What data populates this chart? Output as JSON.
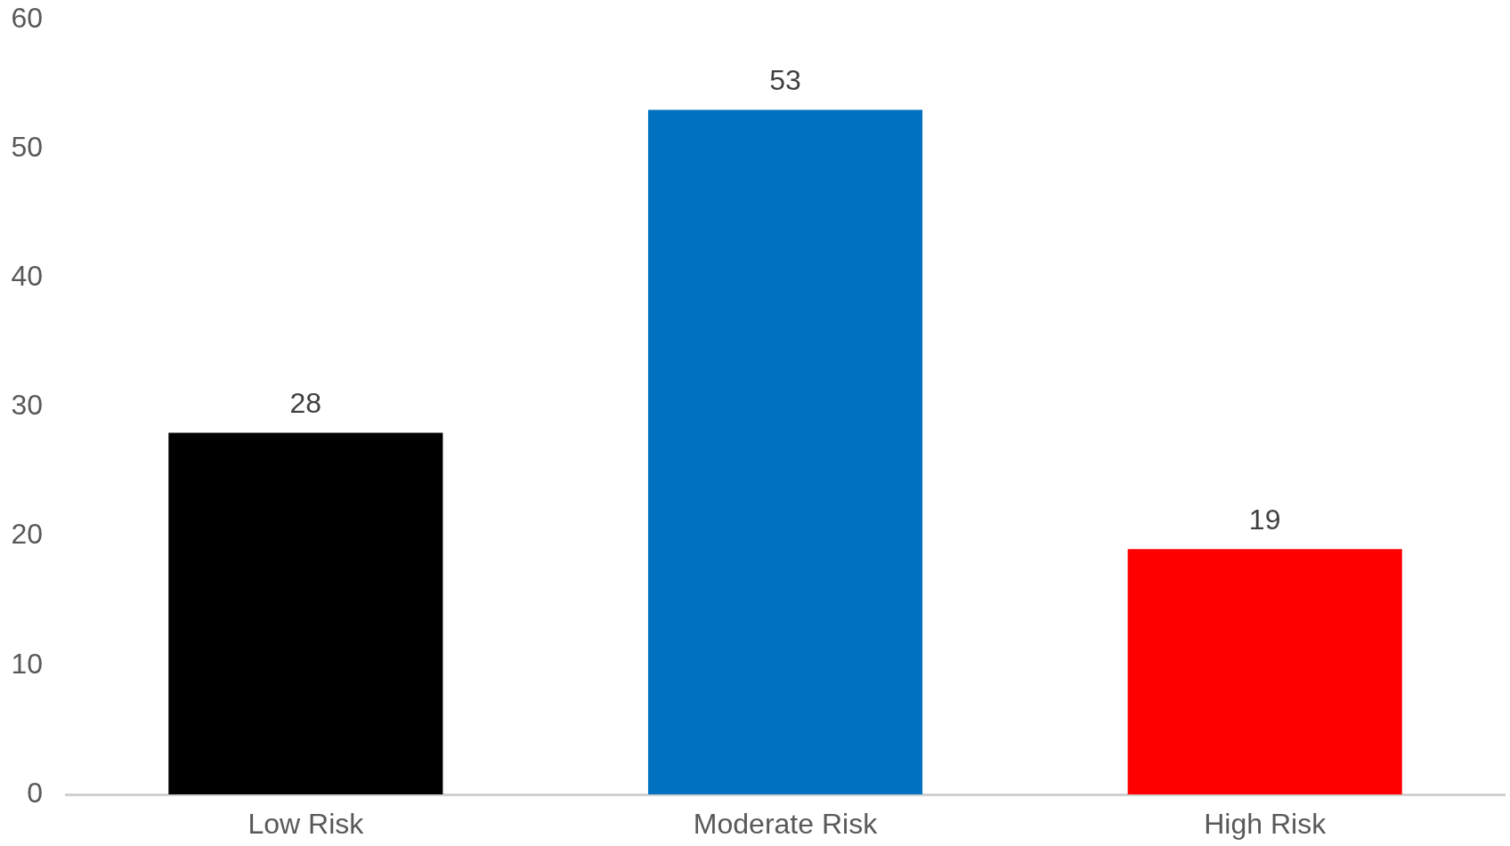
{
  "chart_data": {
    "type": "bar",
    "categories": [
      "Low Risk",
      "Moderate Risk",
      "High Risk"
    ],
    "values": [
      28,
      53,
      19
    ],
    "colors": [
      "#000000",
      "#0070c0",
      "#ff0000"
    ],
    "ylim": [
      0,
      60
    ],
    "yticks": [
      0,
      10,
      20,
      30,
      40,
      50,
      60
    ],
    "grid": false,
    "data_labels": true
  }
}
